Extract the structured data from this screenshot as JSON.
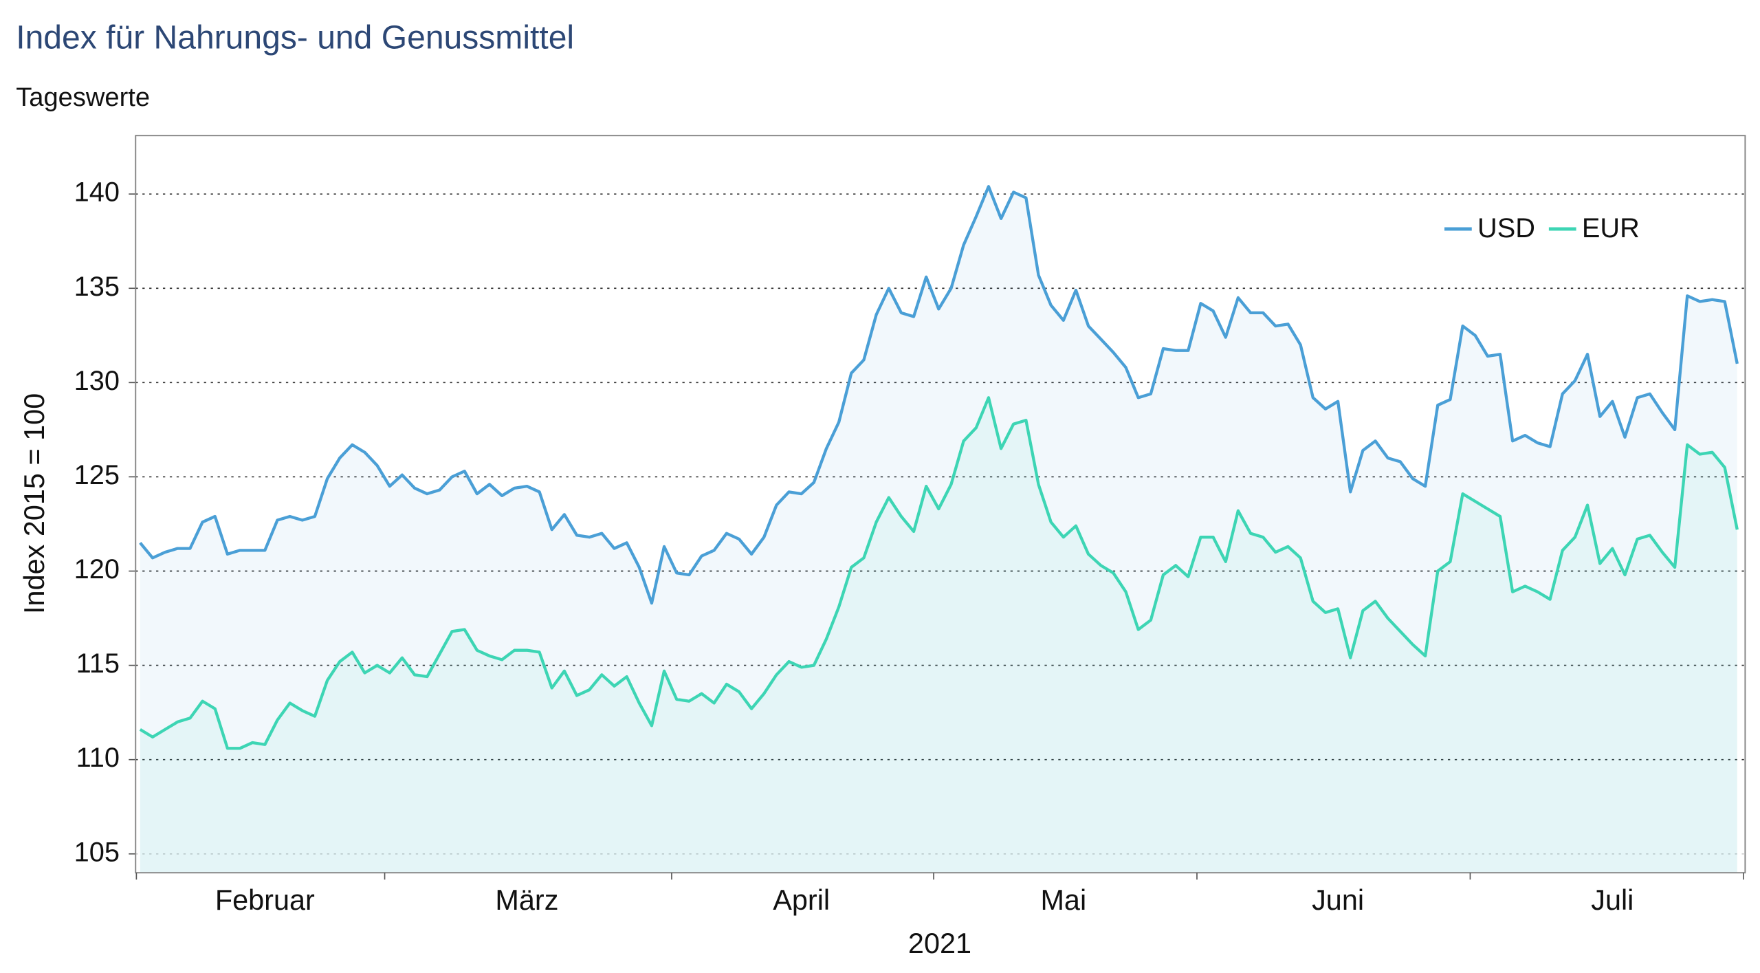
{
  "chart_data": {
    "type": "line",
    "title": "Index für Nahrungs- und Genussmittel",
    "subtitle": "Tageswerte",
    "ylabel": "Index 2015 = 100",
    "xlabel": "2021",
    "categories": [
      null,
      null,
      null,
      null,
      null,
      null,
      null,
      null,
      null,
      null,
      "Februar",
      null,
      null,
      null,
      null,
      null,
      null,
      null,
      null,
      null,
      null,
      null,
      null,
      null,
      null,
      null,
      null,
      null,
      null,
      null,
      null,
      "März",
      null,
      null,
      null,
      null,
      null,
      null,
      null,
      null,
      null,
      null,
      null,
      null,
      null,
      null,
      null,
      null,
      null,
      null,
      null,
      null,
      null,
      "April",
      null,
      null,
      null,
      null,
      null,
      null,
      null,
      null,
      null,
      null,
      null,
      null,
      null,
      null,
      null,
      null,
      null,
      null,
      null,
      null,
      "Mai",
      null,
      null,
      null,
      null,
      null,
      null,
      null,
      null,
      null,
      null,
      null,
      null,
      null,
      null,
      null,
      null,
      null,
      null,
      null,
      null,
      null,
      "Juni",
      null,
      null,
      null,
      null,
      null,
      null,
      null,
      null,
      null,
      null,
      null,
      null,
      null,
      null,
      null,
      null,
      null,
      null,
      null,
      null,
      null,
      "Juli",
      null,
      null,
      null,
      null,
      null,
      null,
      null,
      null,
      null,
      null
    ],
    "series": [
      {
        "name": "USD",
        "color": "#4a9fd6",
        "values": [
          121.5,
          120.7,
          121.0,
          121.2,
          121.2,
          122.6,
          122.9,
          120.9,
          121.1,
          121.1,
          121.1,
          122.7,
          122.9,
          122.7,
          122.9,
          124.9,
          126.0,
          126.7,
          126.3,
          125.6,
          124.5,
          125.1,
          124.4,
          124.1,
          124.3,
          125.0,
          125.3,
          124.1,
          124.6,
          124.0,
          124.4,
          124.5,
          124.2,
          122.2,
          123.0,
          121.9,
          121.8,
          122.0,
          121.2,
          121.5,
          120.2,
          118.3,
          121.3,
          119.9,
          119.8,
          120.8,
          121.1,
          122.0,
          121.7,
          120.9,
          121.8,
          123.5,
          124.2,
          124.1,
          124.7,
          126.5,
          127.9,
          130.5,
          131.2,
          133.6,
          135.0,
          133.7,
          133.5,
          135.6,
          133.9,
          135.0,
          137.3,
          138.8,
          140.4,
          138.7,
          140.1,
          139.8,
          135.7,
          134.1,
          133.3,
          134.9,
          133.0,
          132.3,
          131.6,
          130.8,
          129.2,
          129.4,
          131.8,
          131.7,
          131.7,
          134.2,
          133.8,
          132.4,
          134.5,
          133.7,
          133.7,
          133.0,
          133.1,
          132.0,
          129.2,
          128.6,
          129.0,
          124.2,
          126.4,
          126.9,
          126.0,
          125.8,
          124.9,
          124.5,
          128.8,
          129.1,
          133.0,
          132.5,
          131.4,
          131.5,
          126.9,
          127.2,
          126.8,
          126.6,
          129.4,
          130.1,
          131.5,
          128.2,
          129.0,
          127.1,
          129.2,
          129.4,
          128.4,
          127.5,
          134.6,
          134.3,
          134.4,
          134.3,
          131.0
        ]
      },
      {
        "name": "EUR",
        "color": "#3dd5b4",
        "values": [
          111.6,
          111.2,
          111.6,
          112.0,
          112.2,
          113.1,
          112.7,
          110.6,
          110.6,
          110.9,
          110.8,
          112.1,
          113.0,
          112.6,
          112.3,
          114.2,
          115.2,
          115.7,
          114.6,
          115.0,
          114.6,
          115.4,
          114.5,
          114.4,
          115.6,
          116.8,
          116.9,
          115.8,
          115.5,
          115.3,
          115.8,
          115.8,
          115.7,
          113.8,
          114.7,
          113.4,
          113.7,
          114.5,
          113.9,
          114.4,
          113.0,
          111.8,
          114.7,
          113.2,
          113.1,
          113.5,
          113.0,
          114.0,
          113.6,
          112.7,
          113.5,
          114.5,
          115.2,
          114.9,
          115.0,
          116.4,
          118.1,
          120.2,
          120.7,
          122.6,
          123.9,
          122.9,
          122.1,
          124.5,
          123.3,
          124.6,
          126.9,
          127.6,
          129.2,
          126.5,
          127.8,
          128.0,
          124.6,
          122.6,
          121.8,
          122.4,
          120.9,
          120.3,
          119.9,
          118.9,
          116.9,
          117.4,
          119.8,
          120.3,
          119.7,
          121.8,
          121.8,
          120.5,
          123.2,
          122.0,
          121.8,
          121.0,
          121.3,
          120.7,
          118.4,
          117.8,
          118.0,
          115.4,
          117.9,
          118.4,
          117.5,
          116.8,
          116.1,
          115.5,
          120.0,
          120.5,
          124.1,
          123.7,
          123.3,
          122.9,
          118.9,
          119.2,
          118.9,
          118.5,
          121.1,
          121.8,
          123.5,
          120.4,
          121.2,
          119.8,
          121.7,
          121.9,
          121.0,
          120.2,
          126.7,
          126.2,
          126.3,
          125.5,
          122.2
        ]
      }
    ],
    "ylim": [
      104,
      143.1
    ],
    "yticks": [
      105,
      110,
      115,
      120,
      125,
      130,
      135,
      140
    ],
    "grid": true,
    "fill_area": true,
    "legend": "upper right"
  }
}
